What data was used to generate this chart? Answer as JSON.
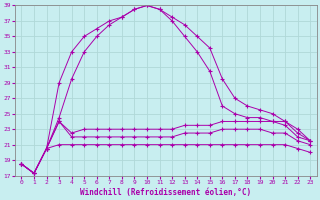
{
  "xlabel": "Windchill (Refroidissement éolien,°C)",
  "xlim": [
    -0.5,
    23.5
  ],
  "ylim": [
    17,
    39
  ],
  "yticks": [
    17,
    19,
    21,
    23,
    25,
    27,
    29,
    31,
    33,
    35,
    37,
    39
  ],
  "xticks": [
    0,
    1,
    2,
    3,
    4,
    5,
    6,
    7,
    8,
    9,
    10,
    11,
    12,
    13,
    14,
    15,
    16,
    17,
    18,
    19,
    20,
    21,
    22,
    23
  ],
  "background_color": "#c8eef0",
  "grid_color": "#b0d8d8",
  "line_color": "#aa00aa",
  "series": {
    "line1": [
      18.5,
      17.3,
      20.5,
      29.0,
      33.0,
      35.0,
      36.0,
      37.0,
      37.5,
      38.5,
      39.0,
      38.5,
      37.5,
      36.5,
      35.0,
      33.5,
      29.5,
      27.0,
      26.0,
      25.5,
      25.0,
      24.0,
      23.0,
      21.5
    ],
    "line2": [
      18.5,
      17.3,
      20.5,
      24.5,
      29.5,
      33.0,
      35.0,
      36.5,
      37.5,
      38.5,
      39.0,
      38.5,
      37.0,
      35.0,
      33.0,
      30.5,
      26.0,
      25.0,
      24.5,
      24.5,
      24.0,
      23.5,
      22.0,
      21.5
    ],
    "line3": [
      18.5,
      17.3,
      20.5,
      24.0,
      22.5,
      23.0,
      23.0,
      23.0,
      23.0,
      23.0,
      23.0,
      23.0,
      23.0,
      23.5,
      23.5,
      23.5,
      24.0,
      24.0,
      24.0,
      24.0,
      24.0,
      24.0,
      22.5,
      21.5
    ],
    "line4": [
      18.5,
      17.3,
      20.5,
      24.0,
      22.0,
      22.0,
      22.0,
      22.0,
      22.0,
      22.0,
      22.0,
      22.0,
      22.0,
      22.5,
      22.5,
      22.5,
      23.0,
      23.0,
      23.0,
      23.0,
      22.5,
      22.5,
      21.5,
      21.0
    ],
    "line5": [
      18.5,
      17.3,
      20.5,
      21.0,
      21.0,
      21.0,
      21.0,
      21.0,
      21.0,
      21.0,
      21.0,
      21.0,
      21.0,
      21.0,
      21.0,
      21.0,
      21.0,
      21.0,
      21.0,
      21.0,
      21.0,
      21.0,
      20.5,
      20.0
    ]
  }
}
